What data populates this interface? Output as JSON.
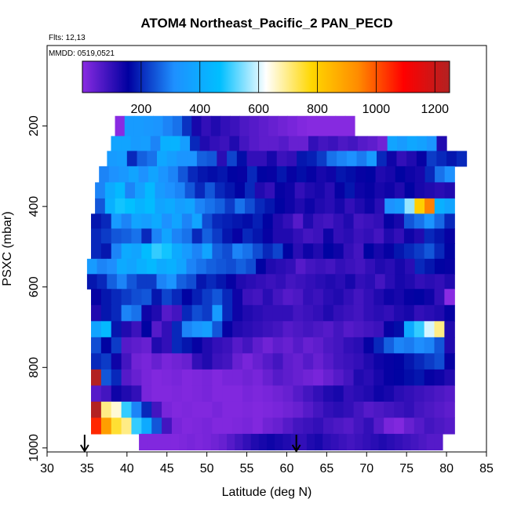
{
  "chart_data": {
    "type": "heatmap",
    "title": "ATOM4 Northeast_Pacific_2 PAN_PECD",
    "annotations": {
      "flights": "Flts: 12,13",
      "dates": "MMDD: 0519,0521"
    },
    "xlabel": "Latitude (deg N)",
    "ylabel": "PSXC (mbar)",
    "xlim": [
      30,
      85
    ],
    "ylim": [
      1010,
      0
    ],
    "x_ticks": [
      30,
      35,
      40,
      45,
      50,
      55,
      60,
      65,
      70,
      75,
      80,
      85
    ],
    "y_ticks": [
      200,
      400,
      600,
      800,
      1000
    ],
    "colorbar": {
      "range": [
        0,
        1250
      ],
      "ticks": [
        200,
        400,
        600,
        800,
        1000,
        1200
      ],
      "colors": [
        "#8a2be2",
        "#0000a0",
        "#1e90ff",
        "#00bfff",
        "#ffffff",
        "#ffd700",
        "#ff8c00",
        "#ff0000",
        "#b22222"
      ]
    },
    "arrows": [
      34.7,
      61.2
    ],
    "layers": [
      {
        "p_top": 175,
        "p_bot": 225,
        "lat_min": 38.5,
        "lat_max": 68.5,
        "values": [
          1,
          350,
          350,
          340,
          330,
          300,
          280,
          210,
          130,
          100,
          120,
          100,
          90,
          70,
          60,
          50,
          40,
          30,
          20,
          10,
          5,
          5,
          5,
          5,
          5
        ]
      },
      {
        "p_top": 225,
        "p_bot": 262,
        "lat_min": 38.0,
        "lat_max": 80.0,
        "values": [
          380,
          380,
          350,
          360,
          300,
          420,
          430,
          360,
          200,
          120,
          100,
          90,
          120,
          80,
          60,
          50,
          50,
          60,
          40,
          40,
          100,
          80,
          90,
          70,
          80,
          60,
          50,
          30,
          380,
          350,
          390,
          370,
          330,
          120
        ]
      },
      {
        "p_top": 262,
        "p_bot": 300,
        "lat_min": 37.5,
        "lat_max": 82.5,
        "values": [
          350,
          360,
          200,
          260,
          280,
          390,
          360,
          330,
          330,
          260,
          250,
          110,
          230,
          170,
          100,
          100,
          130,
          90,
          100,
          180,
          190,
          220,
          280,
          300,
          320,
          290,
          350,
          200,
          140,
          100,
          120,
          150,
          220,
          200,
          180,
          200
        ]
      },
      {
        "p_top": 300,
        "p_bot": 340,
        "lat_min": 36.5,
        "lat_max": 81.0,
        "values": [
          300,
          320,
          340,
          380,
          320,
          380,
          330,
          300,
          250,
          200,
          180,
          170,
          180,
          160,
          150,
          200,
          160,
          150,
          180,
          150,
          170,
          150,
          130,
          140,
          180,
          170,
          150,
          160,
          120,
          130,
          160,
          140,
          130,
          200,
          280,
          320
        ]
      },
      {
        "p_top": 340,
        "p_bot": 380,
        "lat_min": 36.0,
        "lat_max": 81.0,
        "values": [
          300,
          400,
          450,
          300,
          370,
          450,
          350,
          320,
          300,
          250,
          200,
          250,
          200,
          180,
          160,
          200,
          120,
          100,
          150,
          140,
          100,
          120,
          130,
          110,
          150,
          180,
          140,
          150,
          130,
          140,
          120,
          160,
          130,
          120,
          110,
          120
        ]
      },
      {
        "p_top": 380,
        "p_bot": 418,
        "lat_min": 36.0,
        "lat_max": 81.0,
        "values": [
          250,
          420,
          480,
          470,
          430,
          460,
          380,
          400,
          360,
          380,
          300,
          280,
          260,
          220,
          280,
          240,
          200,
          180,
          160,
          140,
          120,
          140,
          120,
          110,
          130,
          100,
          120,
          140,
          110,
          320,
          350,
          560,
          800,
          950,
          420,
          380
        ]
      },
      {
        "p_top": 418,
        "p_bot": 455,
        "lat_min": 35.5,
        "lat_max": 81.0,
        "values": [
          180,
          200,
          350,
          300,
          380,
          360,
          400,
          320,
          380,
          300,
          380,
          240,
          200,
          190,
          180,
          170,
          190,
          160,
          120,
          100,
          60,
          120,
          90,
          80,
          100,
          120,
          80,
          90,
          100,
          150,
          130,
          250,
          280,
          330,
          270,
          200
        ]
      },
      {
        "p_top": 455,
        "p_bot": 492,
        "lat_min": 35.5,
        "lat_max": 81.0,
        "values": [
          200,
          220,
          250,
          260,
          280,
          200,
          300,
          380,
          300,
          280,
          200,
          260,
          220,
          180,
          150,
          200,
          180,
          150,
          120,
          120,
          100,
          80,
          90,
          140,
          100,
          110,
          90,
          100,
          80,
          120,
          100,
          140,
          120,
          200,
          180,
          150
        ]
      },
      {
        "p_top": 492,
        "p_bot": 530,
        "lat_min": 35.5,
        "lat_max": 81.0,
        "values": [
          200,
          180,
          300,
          400,
          380,
          460,
          500,
          480,
          400,
          350,
          300,
          380,
          260,
          240,
          300,
          280,
          240,
          200,
          230,
          160,
          110,
          140,
          120,
          160,
          140,
          100,
          80,
          160,
          130,
          150,
          180,
          200,
          220,
          250,
          200,
          160
        ]
      },
      {
        "p_top": 530,
        "p_bot": 568,
        "lat_min": 35.0,
        "lat_max": 81.0,
        "values": [
          350,
          300,
          310,
          400,
          380,
          420,
          450,
          400,
          420,
          380,
          300,
          280,
          260,
          250,
          240,
          260,
          240,
          160,
          120,
          110,
          100,
          60,
          80,
          90,
          80,
          100,
          90,
          80,
          100,
          120,
          110,
          130,
          110,
          200,
          180,
          160,
          150
        ]
      },
      {
        "p_top": 568,
        "p_bot": 605,
        "lat_min": 35.0,
        "lat_max": 81.0,
        "values": [
          180,
          200,
          260,
          300,
          250,
          220,
          220,
          300,
          330,
          260,
          240,
          180,
          200,
          180,
          150,
          120,
          110,
          100,
          90,
          100,
          80,
          90,
          100,
          110,
          120,
          110,
          130,
          100,
          110,
          80,
          110,
          130,
          120,
          100,
          110,
          100,
          120
        ]
      },
      {
        "p_top": 605,
        "p_bot": 645,
        "lat_min": 35.5,
        "lat_max": 81.0,
        "values": [
          150,
          180,
          200,
          220,
          240,
          250,
          180,
          230,
          200,
          160,
          190,
          220,
          250,
          200,
          140,
          90,
          80,
          110,
          80,
          60,
          70,
          100,
          90,
          110,
          120,
          100,
          80,
          100,
          120,
          140,
          130,
          150,
          160,
          140,
          100,
          1
        ]
      },
      {
        "p_top": 645,
        "p_bot": 685,
        "lat_min": 35.5,
        "lat_max": 81.0,
        "values": [
          120,
          180,
          200,
          300,
          280,
          140,
          120,
          60,
          80,
          200,
          240,
          220,
          350,
          200,
          140,
          120,
          110,
          100,
          100,
          100,
          80,
          90,
          100,
          120,
          100,
          90,
          80,
          100,
          110,
          100,
          120,
          130,
          100,
          110,
          120,
          150
        ]
      },
      {
        "p_top": 685,
        "p_bot": 725,
        "lat_min": 35.5,
        "lat_max": 81.0,
        "values": [
          380,
          450,
          180,
          120,
          90,
          160,
          60,
          100,
          200,
          300,
          330,
          360,
          250,
          150,
          120,
          110,
          100,
          90,
          80,
          60,
          70,
          80,
          70,
          60,
          80,
          60,
          70,
          80,
          90,
          150,
          170,
          400,
          500,
          600,
          700,
          120
        ]
      },
      {
        "p_top": 725,
        "p_bot": 765,
        "lat_min": 35.5,
        "lat_max": 81.0,
        "values": [
          240,
          160,
          220,
          60,
          50,
          40,
          120,
          100,
          200,
          180,
          150,
          120,
          100,
          90,
          60,
          80,
          50,
          30,
          50,
          40,
          60,
          40,
          50,
          70,
          80,
          100,
          110,
          150,
          200,
          260,
          300,
          290,
          310,
          300,
          250,
          120
        ]
      },
      {
        "p_top": 765,
        "p_bot": 805,
        "lat_min": 35.5,
        "lat_max": 81.0,
        "values": [
          200,
          220,
          140,
          80,
          30,
          20,
          40,
          20,
          30,
          40,
          100,
          120,
          90,
          80,
          40,
          20,
          40,
          60,
          80,
          50,
          40,
          60,
          40,
          60,
          80,
          90,
          100,
          120,
          140,
          150,
          160,
          180,
          200,
          220,
          240,
          150
        ]
      },
      {
        "p_top": 805,
        "p_bot": 845,
        "lat_min": 35.5,
        "lat_max": 81.0,
        "values": [
          1250,
          250,
          200,
          60,
          40,
          20,
          10,
          15,
          20,
          10,
          15,
          20,
          10,
          20,
          20,
          30,
          20,
          40,
          60,
          50,
          40,
          30,
          20,
          40,
          60,
          80,
          120,
          110,
          130,
          150,
          160,
          170,
          180,
          150,
          140,
          120
        ]
      },
      {
        "p_top": 845,
        "p_bot": 885,
        "lat_min": 35.5,
        "lat_max": 81.0,
        "values": [
          60,
          80,
          140,
          120,
          100,
          20,
          10,
          10,
          15,
          10,
          15,
          20,
          10,
          10,
          10,
          20,
          15,
          20,
          30,
          40,
          60,
          80,
          100,
          120,
          130,
          100,
          110,
          120,
          140,
          130,
          110,
          100,
          90,
          80,
          70,
          60
        ]
      },
      {
        "p_top": 885,
        "p_bot": 925,
        "lat_min": 35.5,
        "lat_max": 81.0,
        "values": [
          1250,
          700,
          650,
          500,
          300,
          200,
          80,
          20,
          10,
          15,
          10,
          10,
          20,
          10,
          10,
          15,
          10,
          15,
          20,
          30,
          40,
          60,
          80,
          100,
          110,
          100,
          80,
          60,
          70,
          80,
          90,
          100,
          80,
          70,
          60,
          50
        ]
      },
      {
        "p_top": 925,
        "p_bot": 965,
        "lat_min": 35.5,
        "lat_max": 81.0,
        "values": [
          1050,
          900,
          750,
          700,
          500,
          400,
          250,
          80,
          20,
          10,
          15,
          20,
          10,
          10,
          15,
          20,
          10,
          30,
          40,
          60,
          80,
          90,
          100,
          80,
          70,
          60,
          80,
          100,
          60,
          20,
          10,
          40,
          60,
          80,
          70,
          60
        ]
      },
      {
        "p_top": 965,
        "p_bot": 1005,
        "lat_min": 41.5,
        "lat_max": 79.5,
        "values": [
          10,
          10,
          10,
          10,
          10,
          15,
          20,
          15,
          20,
          30,
          40,
          60,
          80,
          100,
          120,
          130,
          140,
          130,
          120,
          110,
          100,
          120,
          130,
          110,
          100,
          90,
          80,
          90,
          100,
          110,
          120,
          110,
          100,
          90,
          80,
          70,
          60,
          60
        ]
      }
    ]
  }
}
